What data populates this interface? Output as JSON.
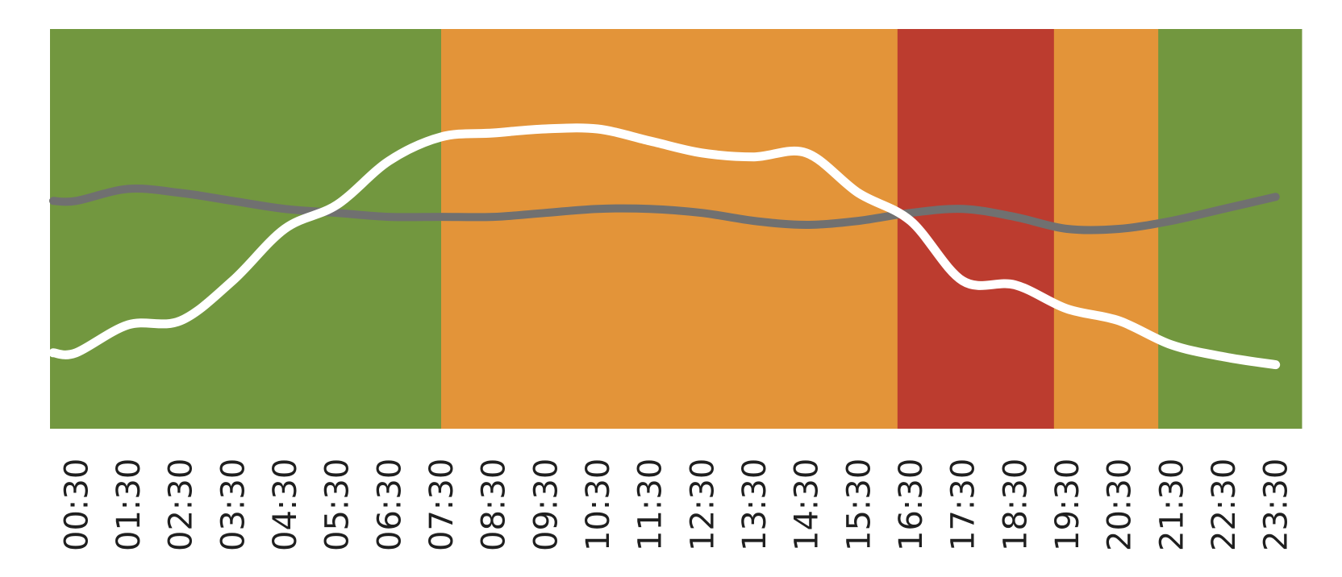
{
  "chart_data": {
    "type": "line",
    "x": [
      "00:30",
      "01:30",
      "02:30",
      "03:30",
      "04:30",
      "05:30",
      "06:30",
      "07:30",
      "08:30",
      "09:30",
      "10:30",
      "11:30",
      "12:30",
      "13:30",
      "14:30",
      "15:30",
      "16:30",
      "17:30",
      "18:30",
      "19:30",
      "20:30",
      "21:30",
      "22:30",
      "23:30"
    ],
    "ylim": [
      0,
      100
    ],
    "grid": false,
    "background_bands": [
      {
        "from": "00:00",
        "to": "07:30",
        "color": "#72973f"
      },
      {
        "from": "07:30",
        "to": "16:15",
        "color": "#e39439"
      },
      {
        "from": "16:15",
        "to": "19:15",
        "color": "#bc3c2f"
      },
      {
        "from": "19:15",
        "to": "21:15",
        "color": "#e39439"
      },
      {
        "from": "21:15",
        "to": "24:00",
        "color": "#72973f"
      }
    ],
    "series": [
      {
        "color": "#ffffff",
        "values": [
          19,
          26,
          27,
          37,
          50,
          56,
          67,
          73,
          74,
          75,
          75,
          72,
          69,
          68,
          69,
          59,
          52,
          37,
          36,
          30,
          27,
          21,
          18,
          16
        ]
      },
      {
        "color": "#707070",
        "values": [
          57,
          60,
          59,
          57,
          55,
          54,
          53,
          53,
          53,
          54,
          55,
          55,
          54,
          52,
          51,
          52,
          54,
          55,
          53,
          50,
          50,
          52,
          55,
          58
        ]
      }
    ]
  }
}
